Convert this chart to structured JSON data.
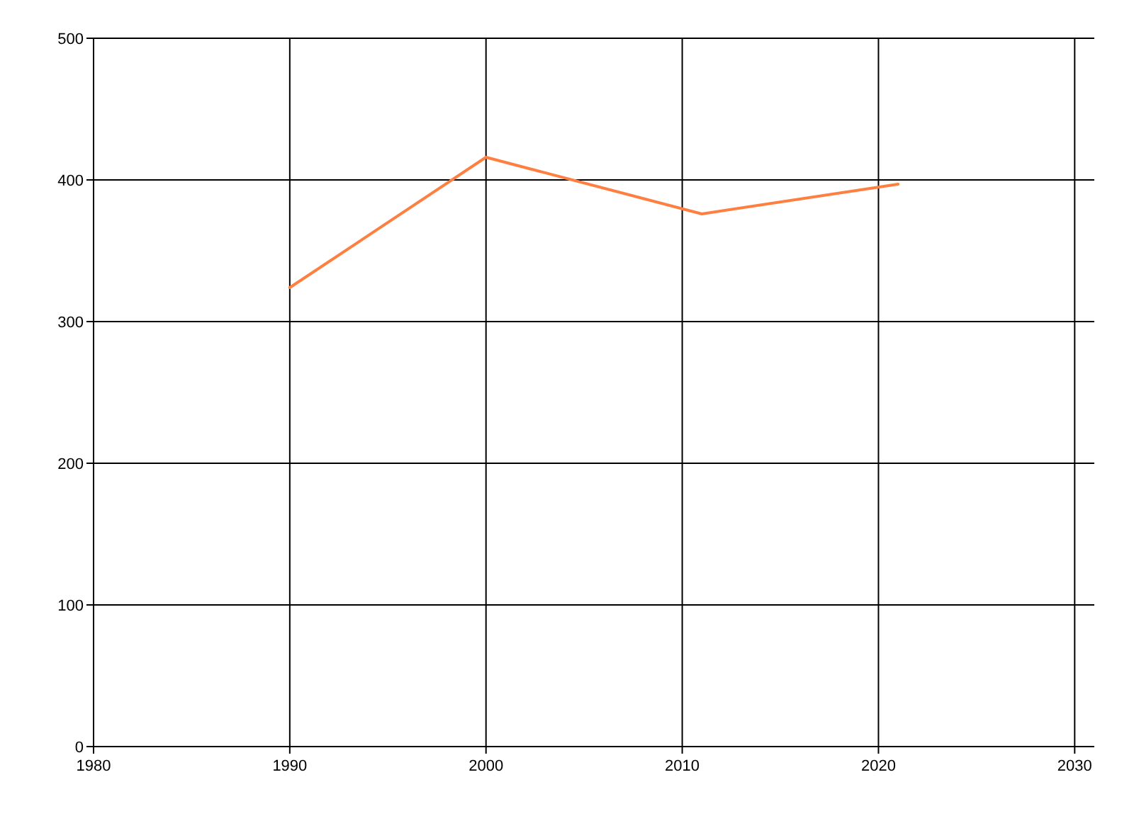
{
  "chart_data": {
    "type": "line",
    "x": [
      1990,
      2000,
      2011,
      2021
    ],
    "series": [
      {
        "color": "#ff7f40",
        "values": [
          324,
          416,
          376,
          397
        ]
      }
    ],
    "xlim": [
      1980,
      2031
    ],
    "xticks": [
      1980,
      1990,
      2000,
      2010,
      2020,
      2030
    ],
    "ylim": [
      0,
      500
    ],
    "yticks": [
      0,
      100,
      200,
      300,
      400,
      500
    ],
    "grid": true,
    "marker": "none",
    "line_style": "solid"
  }
}
